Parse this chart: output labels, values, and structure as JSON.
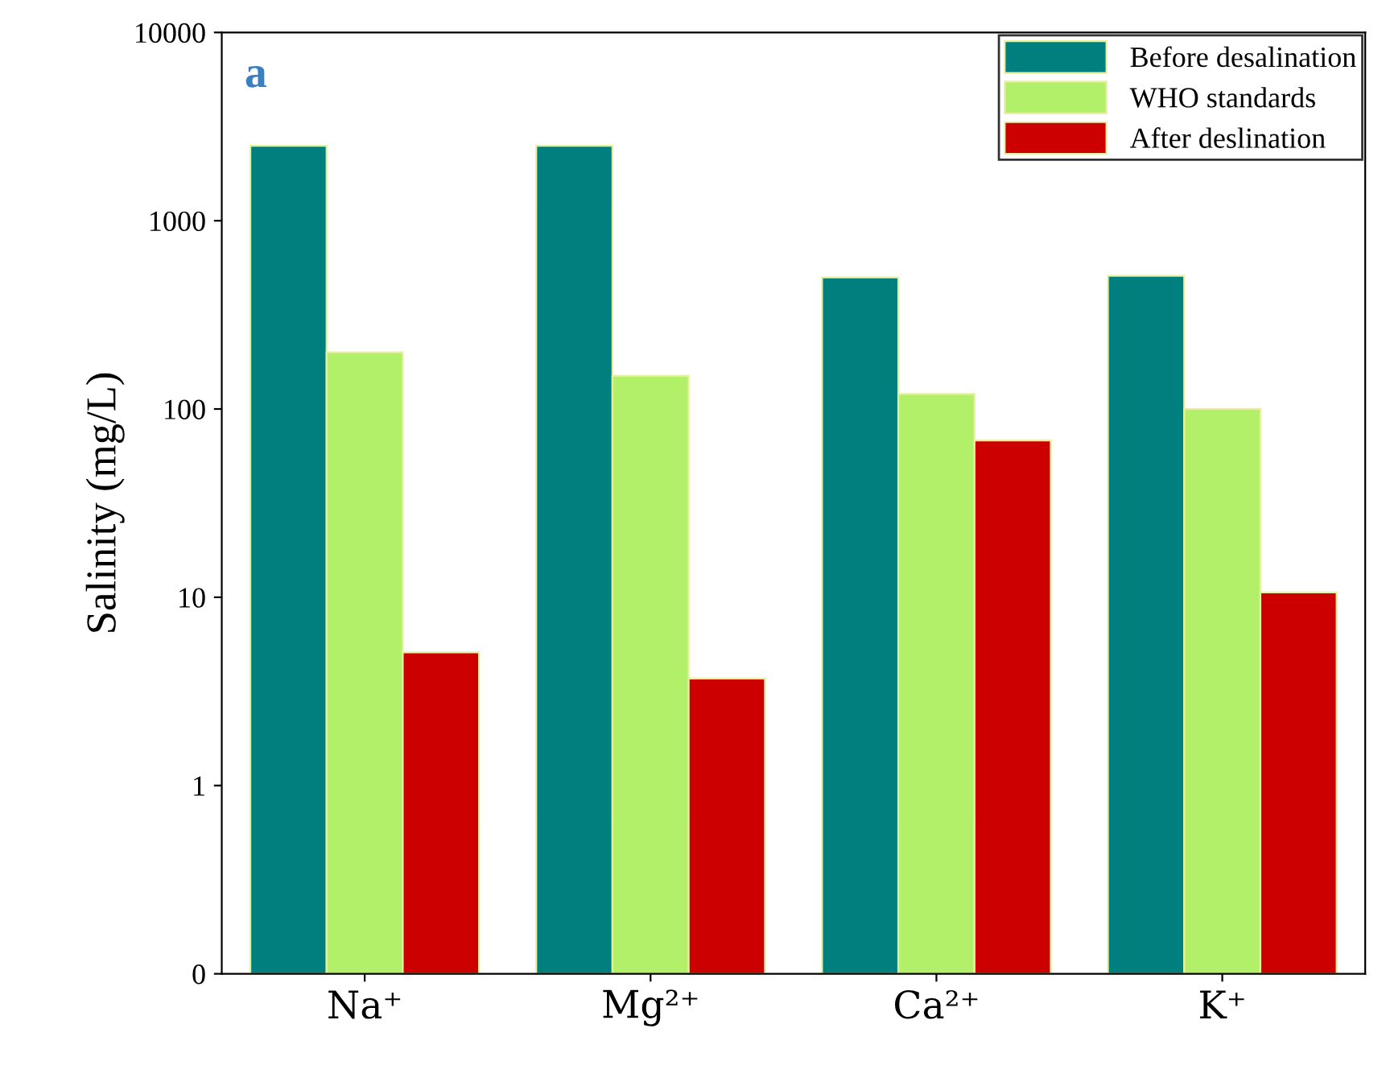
{
  "chart_data": {
    "type": "bar",
    "ylabel": "Salinity (mg/L)",
    "annotations": [
      "a"
    ],
    "categories": [
      "Na⁺",
      "Mg²⁺",
      "Ca²⁺",
      "K⁺"
    ],
    "series": [
      {
        "name": "Before desalination",
        "color": "#007f7f",
        "values": [
          2500,
          2500,
          500,
          510
        ]
      },
      {
        "name": "WHO standards",
        "color": "#b3f06a",
        "values": [
          200,
          150,
          120,
          100
        ]
      },
      {
        "name": "After deslination",
        "color": "#cc0000",
        "values": [
          5,
          3.6,
          68,
          10.5
        ]
      }
    ],
    "log": "y",
    "ylim": [
      0.1,
      10000
    ],
    "yticks": [
      {
        "value": 0.1,
        "label": "0"
      },
      1,
      10,
      100,
      1000,
      10000
    ],
    "grid": false,
    "legend": "top right"
  }
}
